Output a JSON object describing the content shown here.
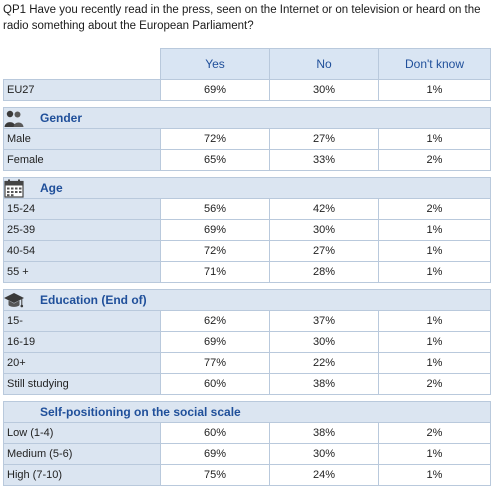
{
  "question": "QP1  Have you recently read in the press, seen on the Internet or on television or heard on the radio something about the European Parliament?",
  "headers": [
    "Yes",
    "No",
    "Don't know"
  ],
  "total": {
    "label": "EU27",
    "values": [
      "69%",
      "30%",
      "1%"
    ]
  },
  "sections": [
    {
      "title": "Gender",
      "icon": "people-icon",
      "rows": [
        {
          "label": "Male",
          "values": [
            "72%",
            "27%",
            "1%"
          ]
        },
        {
          "label": "Female",
          "values": [
            "65%",
            "33%",
            "2%"
          ]
        }
      ]
    },
    {
      "title": "Age",
      "icon": "calendar-icon",
      "rows": [
        {
          "label": "15-24",
          "values": [
            "56%",
            "42%",
            "2%"
          ]
        },
        {
          "label": "25-39",
          "values": [
            "69%",
            "30%",
            "1%"
          ]
        },
        {
          "label": "40-54",
          "values": [
            "72%",
            "27%",
            "1%"
          ]
        },
        {
          "label": "55 +",
          "values": [
            "71%",
            "28%",
            "1%"
          ]
        }
      ]
    },
    {
      "title": "Education (End of)",
      "icon": "graduation-cap-icon",
      "rows": [
        {
          "label": "15-",
          "values": [
            "62%",
            "37%",
            "1%"
          ]
        },
        {
          "label": "16-19",
          "values": [
            "69%",
            "30%",
            "1%"
          ]
        },
        {
          "label": "20+",
          "values": [
            "77%",
            "22%",
            "1%"
          ]
        },
        {
          "label": "Still studying",
          "values": [
            "60%",
            "38%",
            "2%"
          ]
        }
      ]
    },
    {
      "title": "Self-positioning on the social scale",
      "icon": "",
      "rows": [
        {
          "label": "Low (1-4)",
          "values": [
            "60%",
            "38%",
            "2%"
          ]
        },
        {
          "label": "Medium (5-6)",
          "values": [
            "69%",
            "30%",
            "1%"
          ]
        },
        {
          "label": "High (7-10)",
          "values": [
            "75%",
            "24%",
            "1%"
          ]
        }
      ]
    }
  ]
}
